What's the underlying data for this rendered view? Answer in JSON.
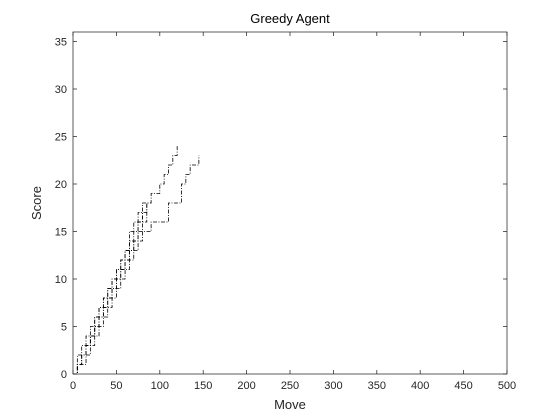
{
  "chart_data": {
    "type": "line",
    "title": "Greedy Agent",
    "xlabel": "Move",
    "ylabel": "Score",
    "xlim": [
      0,
      500
    ],
    "ylim": [
      0,
      36
    ],
    "xticks": [
      0,
      50,
      100,
      150,
      200,
      250,
      300,
      350,
      400,
      450,
      500
    ],
    "yticks": [
      0,
      5,
      10,
      15,
      20,
      25,
      30,
      35
    ],
    "grid": false,
    "legend": "none",
    "line_color": "#000000",
    "line_style": "dash-dot",
    "series": [
      {
        "x": [
          0,
          5,
          10,
          15,
          20,
          25,
          30,
          35,
          40,
          45,
          50,
          55,
          60,
          65,
          70,
          75,
          80,
          85,
          90,
          95,
          100,
          105,
          110,
          115,
          120
        ],
        "y": [
          0,
          1,
          2,
          3,
          4,
          5,
          6,
          7,
          8,
          9,
          10,
          11,
          12,
          13,
          14,
          15,
          16,
          18,
          19,
          19,
          20,
          21,
          22,
          23,
          24
        ]
      },
      {
        "x": [
          0,
          5,
          10,
          15,
          20,
          25,
          30,
          35,
          40,
          45,
          50,
          55,
          60,
          65,
          70,
          75,
          80,
          90,
          100,
          110,
          120,
          125,
          130,
          135,
          140,
          145
        ],
        "y": [
          0,
          1,
          1,
          2,
          3,
          4,
          5,
          6,
          7,
          8,
          9,
          10,
          11,
          12,
          13,
          14,
          15,
          16,
          16,
          18,
          18,
          20,
          21,
          22,
          22,
          23
        ]
      },
      {
        "x": [
          0,
          5,
          10,
          15,
          20,
          25,
          30,
          35,
          40,
          45,
          50,
          55,
          60,
          65,
          70,
          75,
          80,
          85,
          90
        ],
        "y": [
          0,
          2,
          3,
          4,
          5,
          6,
          7,
          8,
          9,
          10,
          11,
          12,
          13,
          14,
          15,
          16,
          17,
          18,
          18
        ]
      },
      {
        "x": [
          0,
          5,
          10,
          15,
          20,
          25,
          30,
          35,
          40,
          45,
          50,
          55,
          60,
          65,
          70,
          75,
          80,
          85
        ],
        "y": [
          0,
          1,
          2,
          3,
          4,
          6,
          7,
          8,
          9,
          10,
          11,
          12,
          13,
          15,
          16,
          17,
          18,
          18
        ]
      },
      {
        "x": [
          0,
          5,
          10,
          15,
          20,
          25,
          30,
          35,
          40,
          45,
          50,
          55,
          60,
          65,
          70,
          75,
          80
        ],
        "y": [
          0,
          1,
          2,
          3,
          4,
          5,
          6,
          7,
          8,
          9,
          10,
          11,
          12,
          13,
          14,
          16,
          17
        ]
      }
    ]
  }
}
